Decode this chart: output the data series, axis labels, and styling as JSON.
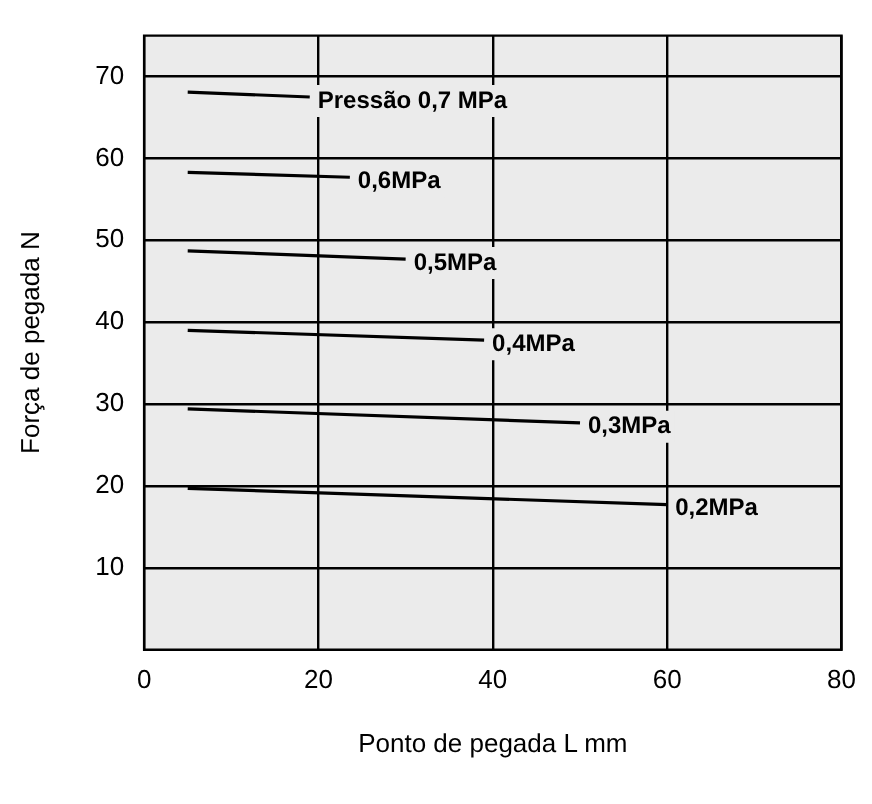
{
  "chart_data": {
    "type": "line",
    "xlabel": "Ponto de pegada L mm",
    "ylabel": "Força de pegada N",
    "xlim": [
      0,
      80
    ],
    "xticks": [
      0,
      20,
      40,
      60,
      80
    ],
    "ylim": [
      0,
      75
    ],
    "yticks": [
      10,
      20,
      30,
      40,
      50,
      60,
      70
    ],
    "grid": true,
    "legend": false,
    "marker": "none",
    "line_style": "solid",
    "series": [
      {
        "name": "Pressão 0,7 MPa",
        "color": "#000000",
        "x": [
          5,
          19
        ],
        "values": [
          68.1,
          67.5
        ]
      },
      {
        "name": "0,6MPa",
        "color": "#000000",
        "x": [
          5,
          23.6
        ],
        "values": [
          58.3,
          57.7
        ]
      },
      {
        "name": "0,5MPa",
        "color": "#000000",
        "x": [
          5,
          30
        ],
        "values": [
          48.7,
          47.7
        ]
      },
      {
        "name": "0,4MPa",
        "color": "#000000",
        "x": [
          5,
          39
        ],
        "values": [
          39,
          37.8
        ]
      },
      {
        "name": "0,3MPa",
        "color": "#000000",
        "x": [
          5,
          50
        ],
        "values": [
          29.4,
          27.7
        ]
      },
      {
        "name": "0,2MPa",
        "color": "#000000",
        "x": [
          5,
          60
        ],
        "values": [
          19.7,
          17.7
        ]
      }
    ]
  }
}
